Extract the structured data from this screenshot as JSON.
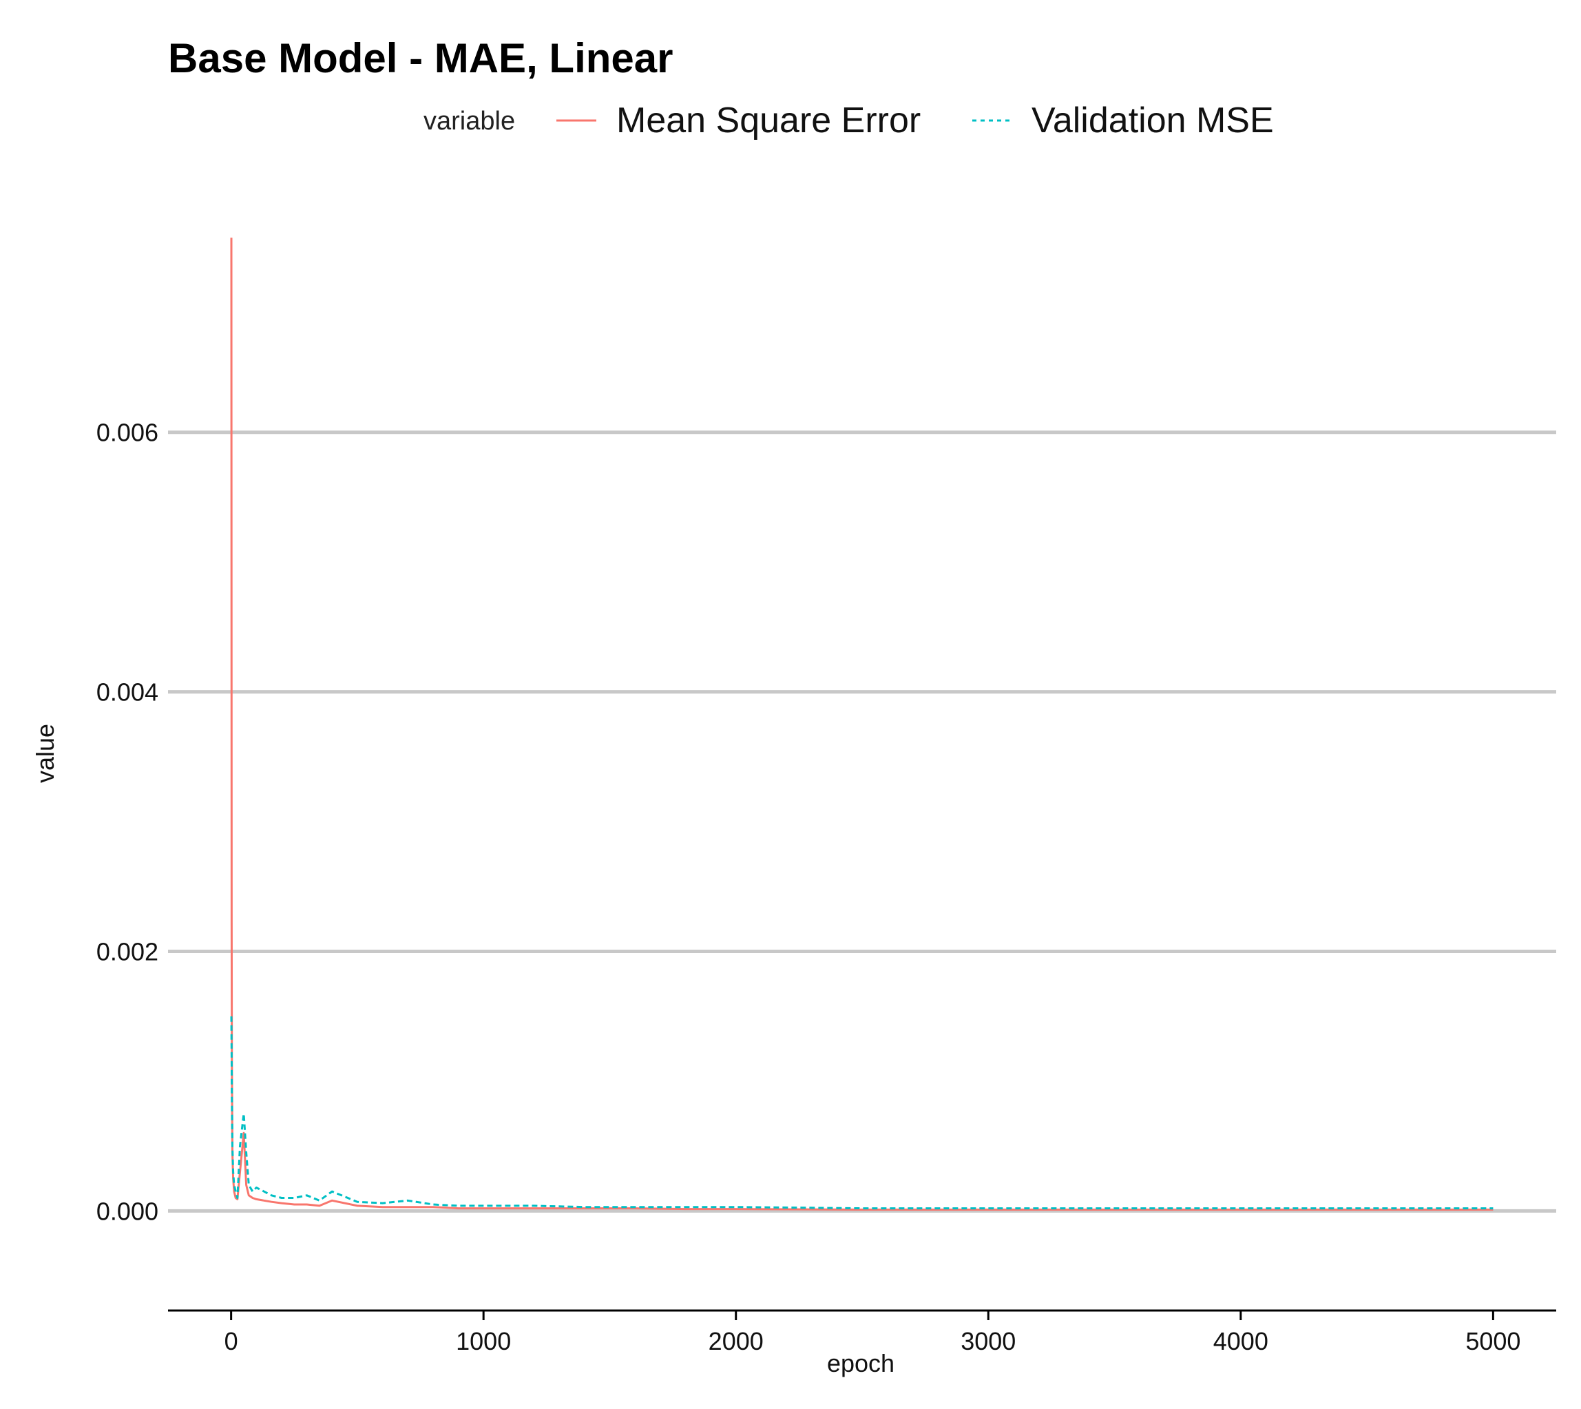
{
  "chart_data": {
    "type": "line",
    "title": "Base Model - MAE, Linear",
    "xlabel": "epoch",
    "ylabel": "value",
    "xlim": [
      -250,
      5250
    ],
    "ylim": [
      -0.00038,
      0.00758
    ],
    "x_ticks": [
      0,
      1000,
      2000,
      3000,
      4000,
      5000
    ],
    "x_tick_labels": [
      "0",
      "1000",
      "2000",
      "3000",
      "4000",
      "5000"
    ],
    "y_ticks": [
      0.0,
      0.002,
      0.004,
      0.006
    ],
    "y_tick_labels": [
      "0.000",
      "0.002",
      "0.004",
      "0.006"
    ],
    "grid": "horizontal major",
    "legend": {
      "title": "variable",
      "position": "top"
    },
    "series": [
      {
        "name": "Mean Square Error",
        "color": "#F8766D",
        "linetype": "solid",
        "x": [
          1,
          2,
          3,
          5,
          8,
          12,
          18,
          25,
          35,
          50,
          60,
          70,
          85,
          100,
          130,
          160,
          200,
          250,
          300,
          350,
          400,
          500,
          600,
          700,
          800,
          900,
          1000,
          1200,
          1400,
          1600,
          1800,
          2000,
          2500,
          3000,
          3500,
          4000,
          4500,
          5000
        ],
        "values": [
          0.0075,
          0.0022,
          0.0012,
          0.00045,
          0.00025,
          0.00015,
          0.0001,
          9e-05,
          0.0003,
          0.0006,
          0.0002,
          0.00012,
          0.0001,
          9e-05,
          8e-05,
          7e-05,
          6e-05,
          5e-05,
          5e-05,
          4e-05,
          8e-05,
          4e-05,
          3e-05,
          3e-05,
          3e-05,
          2e-05,
          2e-05,
          2e-05,
          2e-05,
          2e-05,
          1.5e-05,
          1.5e-05,
          1e-05,
          1e-05,
          1e-05,
          1e-05,
          1e-05,
          1e-05
        ]
      },
      {
        "name": "Validation MSE",
        "color": "#00BFC4",
        "linetype": "dashed",
        "x": [
          1,
          2,
          3,
          5,
          8,
          12,
          18,
          25,
          35,
          50,
          60,
          70,
          85,
          100,
          130,
          160,
          200,
          250,
          300,
          350,
          400,
          500,
          600,
          700,
          800,
          900,
          1000,
          1200,
          1400,
          1600,
          1800,
          2000,
          2500,
          3000,
          3500,
          4000,
          4500,
          5000
        ],
        "values": [
          0.0015,
          0.0012,
          0.0009,
          0.0005,
          0.0003,
          0.0002,
          0.00015,
          0.0001,
          0.0005,
          0.00075,
          0.00045,
          0.0002,
          0.00015,
          0.00018,
          0.00015,
          0.00012,
          0.0001,
          0.0001,
          0.00012,
          8e-05,
          0.00015,
          7e-05,
          6e-05,
          8e-05,
          5e-05,
          4e-05,
          4e-05,
          4e-05,
          3e-05,
          3e-05,
          3e-05,
          3e-05,
          2e-05,
          2e-05,
          2e-05,
          2e-05,
          2e-05,
          2e-05
        ]
      }
    ]
  }
}
